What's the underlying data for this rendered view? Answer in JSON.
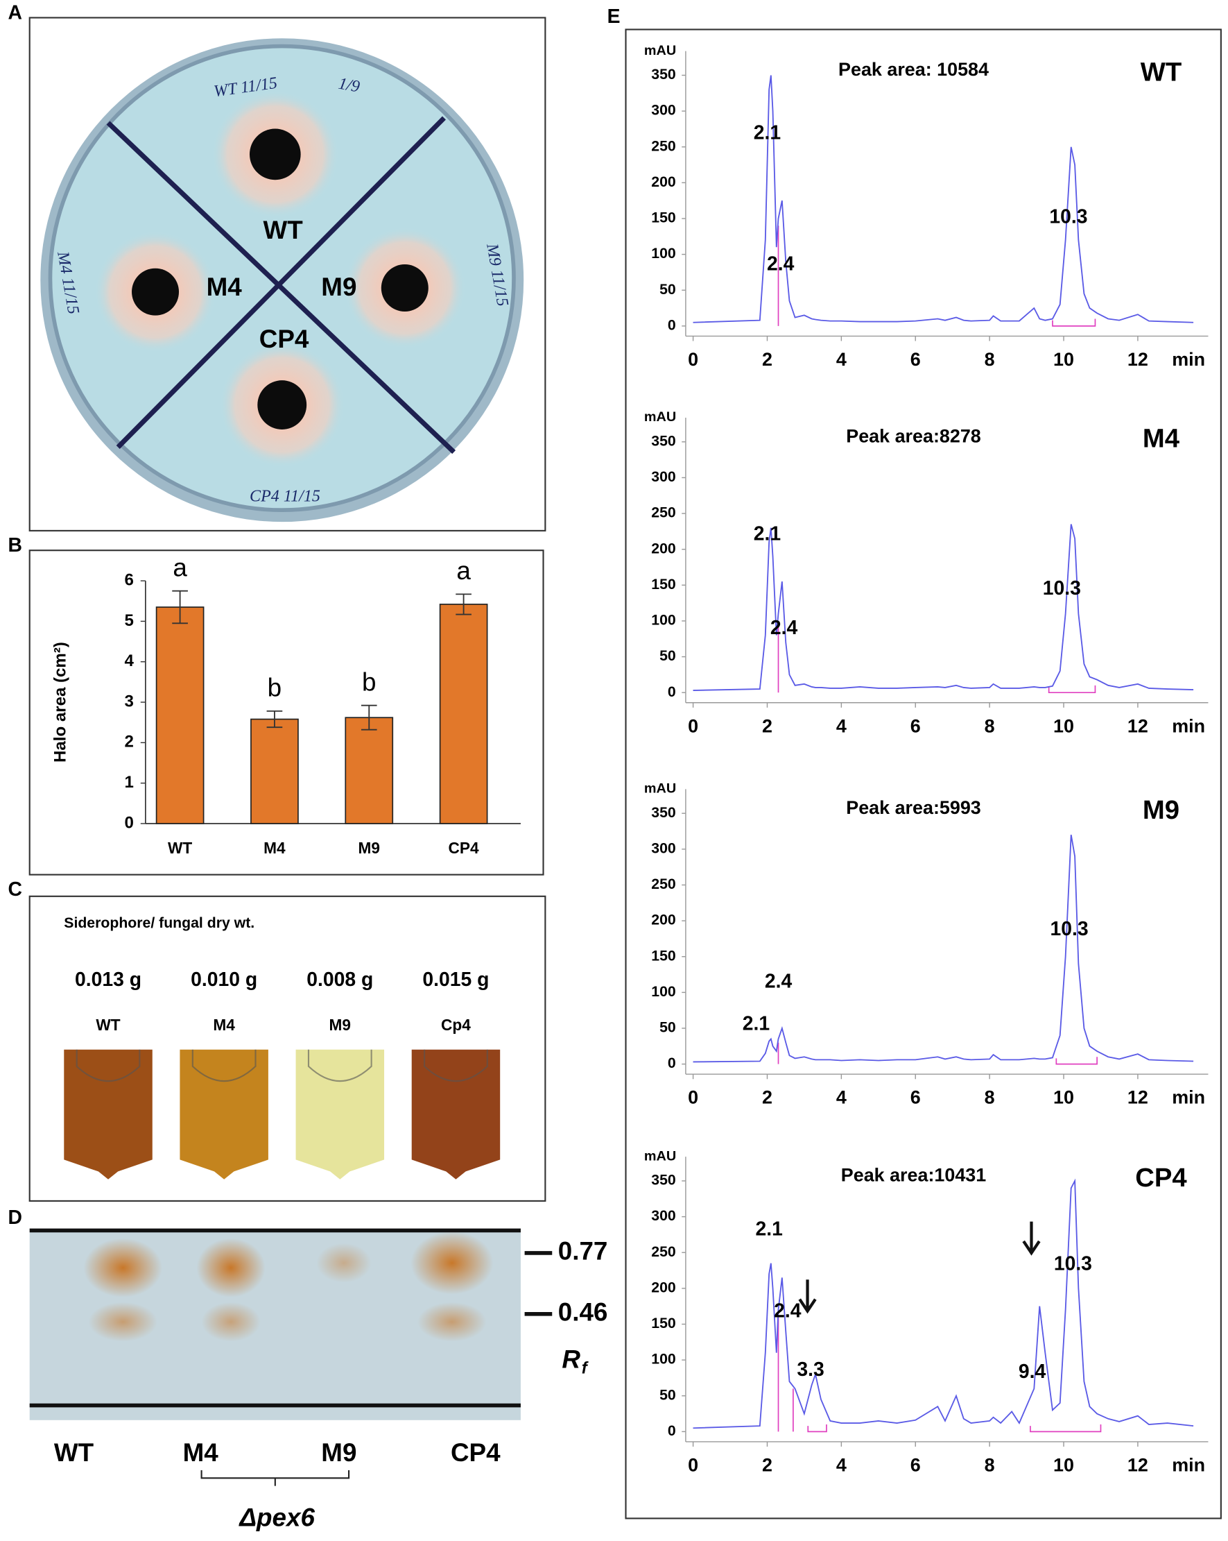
{
  "panel_labels": [
    "A",
    "B",
    "C",
    "D",
    "E"
  ],
  "plate": {
    "labels": [
      "WT",
      "M4",
      "M9",
      "CP4"
    ],
    "handwriting": [
      "WT 11/15",
      "1/9",
      "M4 11/15",
      "M9 11/15",
      "CP4 11/15"
    ]
  },
  "tubes": {
    "title": "Siderophore/ fungal dry wt.",
    "amounts": [
      "0.013 g",
      "0.010 g",
      "0.008 g",
      "0.015 g"
    ],
    "labels": [
      "WT",
      "M4",
      "M9",
      "Cp4"
    ]
  },
  "tlc": {
    "rf_values": [
      0.77,
      0.46
    ],
    "rf_symbol": "R",
    "rf_subscript": "f",
    "lanes": [
      "WT",
      "M4",
      "M9",
      "CP4"
    ],
    "group_label": "Δpex6"
  },
  "chart_data": [
    {
      "type": "bar",
      "ylabel": "Halo area (cm²)",
      "categories": [
        "WT",
        "M4",
        "M9",
        "CP4"
      ],
      "values": [
        5.35,
        2.58,
        2.62,
        5.42
      ],
      "errors": [
        0.4,
        0.2,
        0.3,
        0.25
      ],
      "significance": [
        "a",
        "b",
        "b",
        "a"
      ],
      "color": "#e2782a",
      "ylim": [
        0,
        6
      ],
      "yticks": [
        0,
        1,
        2,
        3,
        4,
        5,
        6
      ]
    },
    {
      "type": "line",
      "title": "Peak area: 10584",
      "sample": "WT",
      "ylabel": "mAU",
      "x_unit": "min",
      "color": "#5a5ae6",
      "peak_labels": [
        "2.1",
        "2.4",
        "10.3"
      ],
      "xlim": [
        -0.2,
        13.9
      ],
      "xticks": [
        0,
        2,
        4,
        6,
        8,
        10,
        12
      ],
      "ylim": [
        -10,
        370
      ],
      "yticks": [
        0,
        50,
        100,
        150,
        200,
        250,
        300,
        350
      ],
      "x": [
        0,
        1.8,
        1.95,
        2.05,
        2.1,
        2.15,
        2.25,
        2.3,
        2.4,
        2.5,
        2.6,
        2.75,
        3.0,
        3.2,
        3.3,
        3.45,
        3.7,
        4,
        4.5,
        5,
        5.5,
        6,
        6.6,
        6.8,
        7.1,
        7.3,
        7.5,
        8,
        8.1,
        8.3,
        8.6,
        8.8,
        9.2,
        9.35,
        9.5,
        9.7,
        9.9,
        10.05,
        10.2,
        10.3,
        10.4,
        10.55,
        10.7,
        10.9,
        11.2,
        11.5,
        12,
        12.3,
        12.8,
        13.5
      ],
      "values": [
        5,
        8,
        120,
        330,
        350,
        300,
        110,
        150,
        175,
        90,
        35,
        12,
        15,
        10,
        9,
        8,
        7,
        7,
        6,
        6,
        6,
        7,
        10,
        8,
        12,
        8,
        7,
        8,
        14,
        7,
        7,
        7,
        25,
        10,
        8,
        10,
        30,
        120,
        250,
        225,
        120,
        45,
        25,
        18,
        10,
        8,
        16,
        7,
        6,
        5
      ]
    },
    {
      "type": "line",
      "title": "Peak area:8278",
      "sample": "M4",
      "ylabel": "mAU",
      "x_unit": "min",
      "color": "#5a5ae6",
      "peak_labels": [
        "2.1",
        "2.4",
        "10.3"
      ],
      "xlim": [
        -0.2,
        13.9
      ],
      "xticks": [
        0,
        2,
        4,
        6,
        8,
        10,
        12
      ],
      "ylim": [
        -10,
        370
      ],
      "yticks": [
        0,
        50,
        100,
        150,
        200,
        250,
        300,
        350
      ],
      "x": [
        0,
        1.8,
        1.95,
        2.05,
        2.1,
        2.15,
        2.25,
        2.3,
        2.4,
        2.5,
        2.6,
        2.75,
        3.0,
        3.2,
        3.3,
        3.45,
        3.7,
        4,
        4.5,
        5,
        5.5,
        6,
        6.6,
        6.8,
        7.1,
        7.3,
        7.5,
        8,
        8.1,
        8.3,
        8.6,
        8.8,
        9.2,
        9.35,
        9.5,
        9.7,
        9.9,
        10.05,
        10.2,
        10.3,
        10.4,
        10.55,
        10.7,
        10.9,
        11.2,
        11.5,
        12,
        12.3,
        12.8,
        13.5
      ],
      "values": [
        3,
        5,
        80,
        210,
        230,
        190,
        80,
        110,
        155,
        70,
        25,
        10,
        12,
        8,
        7,
        7,
        6,
        6,
        8,
        6,
        6,
        7,
        8,
        7,
        10,
        7,
        6,
        7,
        12,
        6,
        6,
        6,
        8,
        7,
        7,
        9,
        30,
        110,
        235,
        215,
        110,
        40,
        22,
        18,
        10,
        7,
        12,
        6,
        5,
        4
      ]
    },
    {
      "type": "line",
      "title": "Peak area:5993",
      "sample": "M9",
      "ylabel": "mAU",
      "x_unit": "min",
      "color": "#5a5ae6",
      "peak_labels": [
        "2.1",
        "2.4",
        "10.3"
      ],
      "xlim": [
        -0.2,
        13.9
      ],
      "xticks": [
        0,
        2,
        4,
        6,
        8,
        10,
        12
      ],
      "ylim": [
        -10,
        370
      ],
      "yticks": [
        0,
        50,
        100,
        150,
        200,
        250,
        300,
        350
      ],
      "x": [
        0,
        1.8,
        1.95,
        2.05,
        2.1,
        2.15,
        2.25,
        2.3,
        2.4,
        2.5,
        2.6,
        2.75,
        3.0,
        3.2,
        3.3,
        3.45,
        3.7,
        4,
        4.5,
        5,
        5.5,
        6,
        6.6,
        6.8,
        7.1,
        7.3,
        7.5,
        8,
        8.1,
        8.3,
        8.6,
        8.8,
        9.2,
        9.35,
        9.5,
        9.7,
        9.9,
        10.05,
        10.2,
        10.3,
        10.4,
        10.55,
        10.7,
        10.9,
        11.2,
        11.5,
        12,
        12.3,
        12.8,
        13.5
      ],
      "values": [
        3,
        4,
        15,
        32,
        35,
        25,
        18,
        35,
        50,
        30,
        12,
        8,
        10,
        7,
        6,
        6,
        6,
        5,
        6,
        5,
        6,
        6,
        10,
        7,
        10,
        7,
        6,
        7,
        13,
        6,
        6,
        6,
        8,
        7,
        7,
        9,
        40,
        150,
        320,
        290,
        140,
        50,
        25,
        18,
        10,
        7,
        14,
        6,
        5,
        4
      ]
    },
    {
      "type": "line",
      "title": "Peak area:10431",
      "sample": "CP4",
      "ylabel": "mAU",
      "x_unit": "min",
      "color": "#5a5ae6",
      "peak_labels": [
        "2.1",
        "2.4",
        "3.3",
        "9.4",
        "10.3"
      ],
      "xlim": [
        -0.2,
        13.9
      ],
      "xticks": [
        0,
        2,
        4,
        6,
        8,
        10,
        12
      ],
      "ylim": [
        -10,
        370
      ],
      "yticks": [
        0,
        50,
        100,
        150,
        200,
        250,
        300,
        350
      ],
      "x": [
        0,
        1.8,
        1.95,
        2.05,
        2.1,
        2.15,
        2.25,
        2.3,
        2.4,
        2.5,
        2.6,
        2.75,
        3.0,
        3.2,
        3.3,
        3.45,
        3.7,
        4,
        4.5,
        5,
        5.5,
        6,
        6.6,
        6.8,
        7.1,
        7.3,
        7.5,
        8,
        8.1,
        8.3,
        8.6,
        8.8,
        9.2,
        9.35,
        9.5,
        9.7,
        9.9,
        10.05,
        10.2,
        10.3,
        10.4,
        10.55,
        10.7,
        10.9,
        11.2,
        11.5,
        12,
        12.3,
        12.8,
        13.5
      ],
      "values": [
        5,
        8,
        110,
        220,
        235,
        200,
        110,
        170,
        215,
        140,
        70,
        60,
        25,
        65,
        80,
        45,
        15,
        12,
        12,
        15,
        12,
        16,
        35,
        15,
        50,
        18,
        12,
        15,
        20,
        12,
        28,
        12,
        60,
        175,
        110,
        30,
        40,
        170,
        340,
        350,
        200,
        70,
        35,
        25,
        18,
        14,
        22,
        10,
        12,
        8
      ]
    }
  ]
}
